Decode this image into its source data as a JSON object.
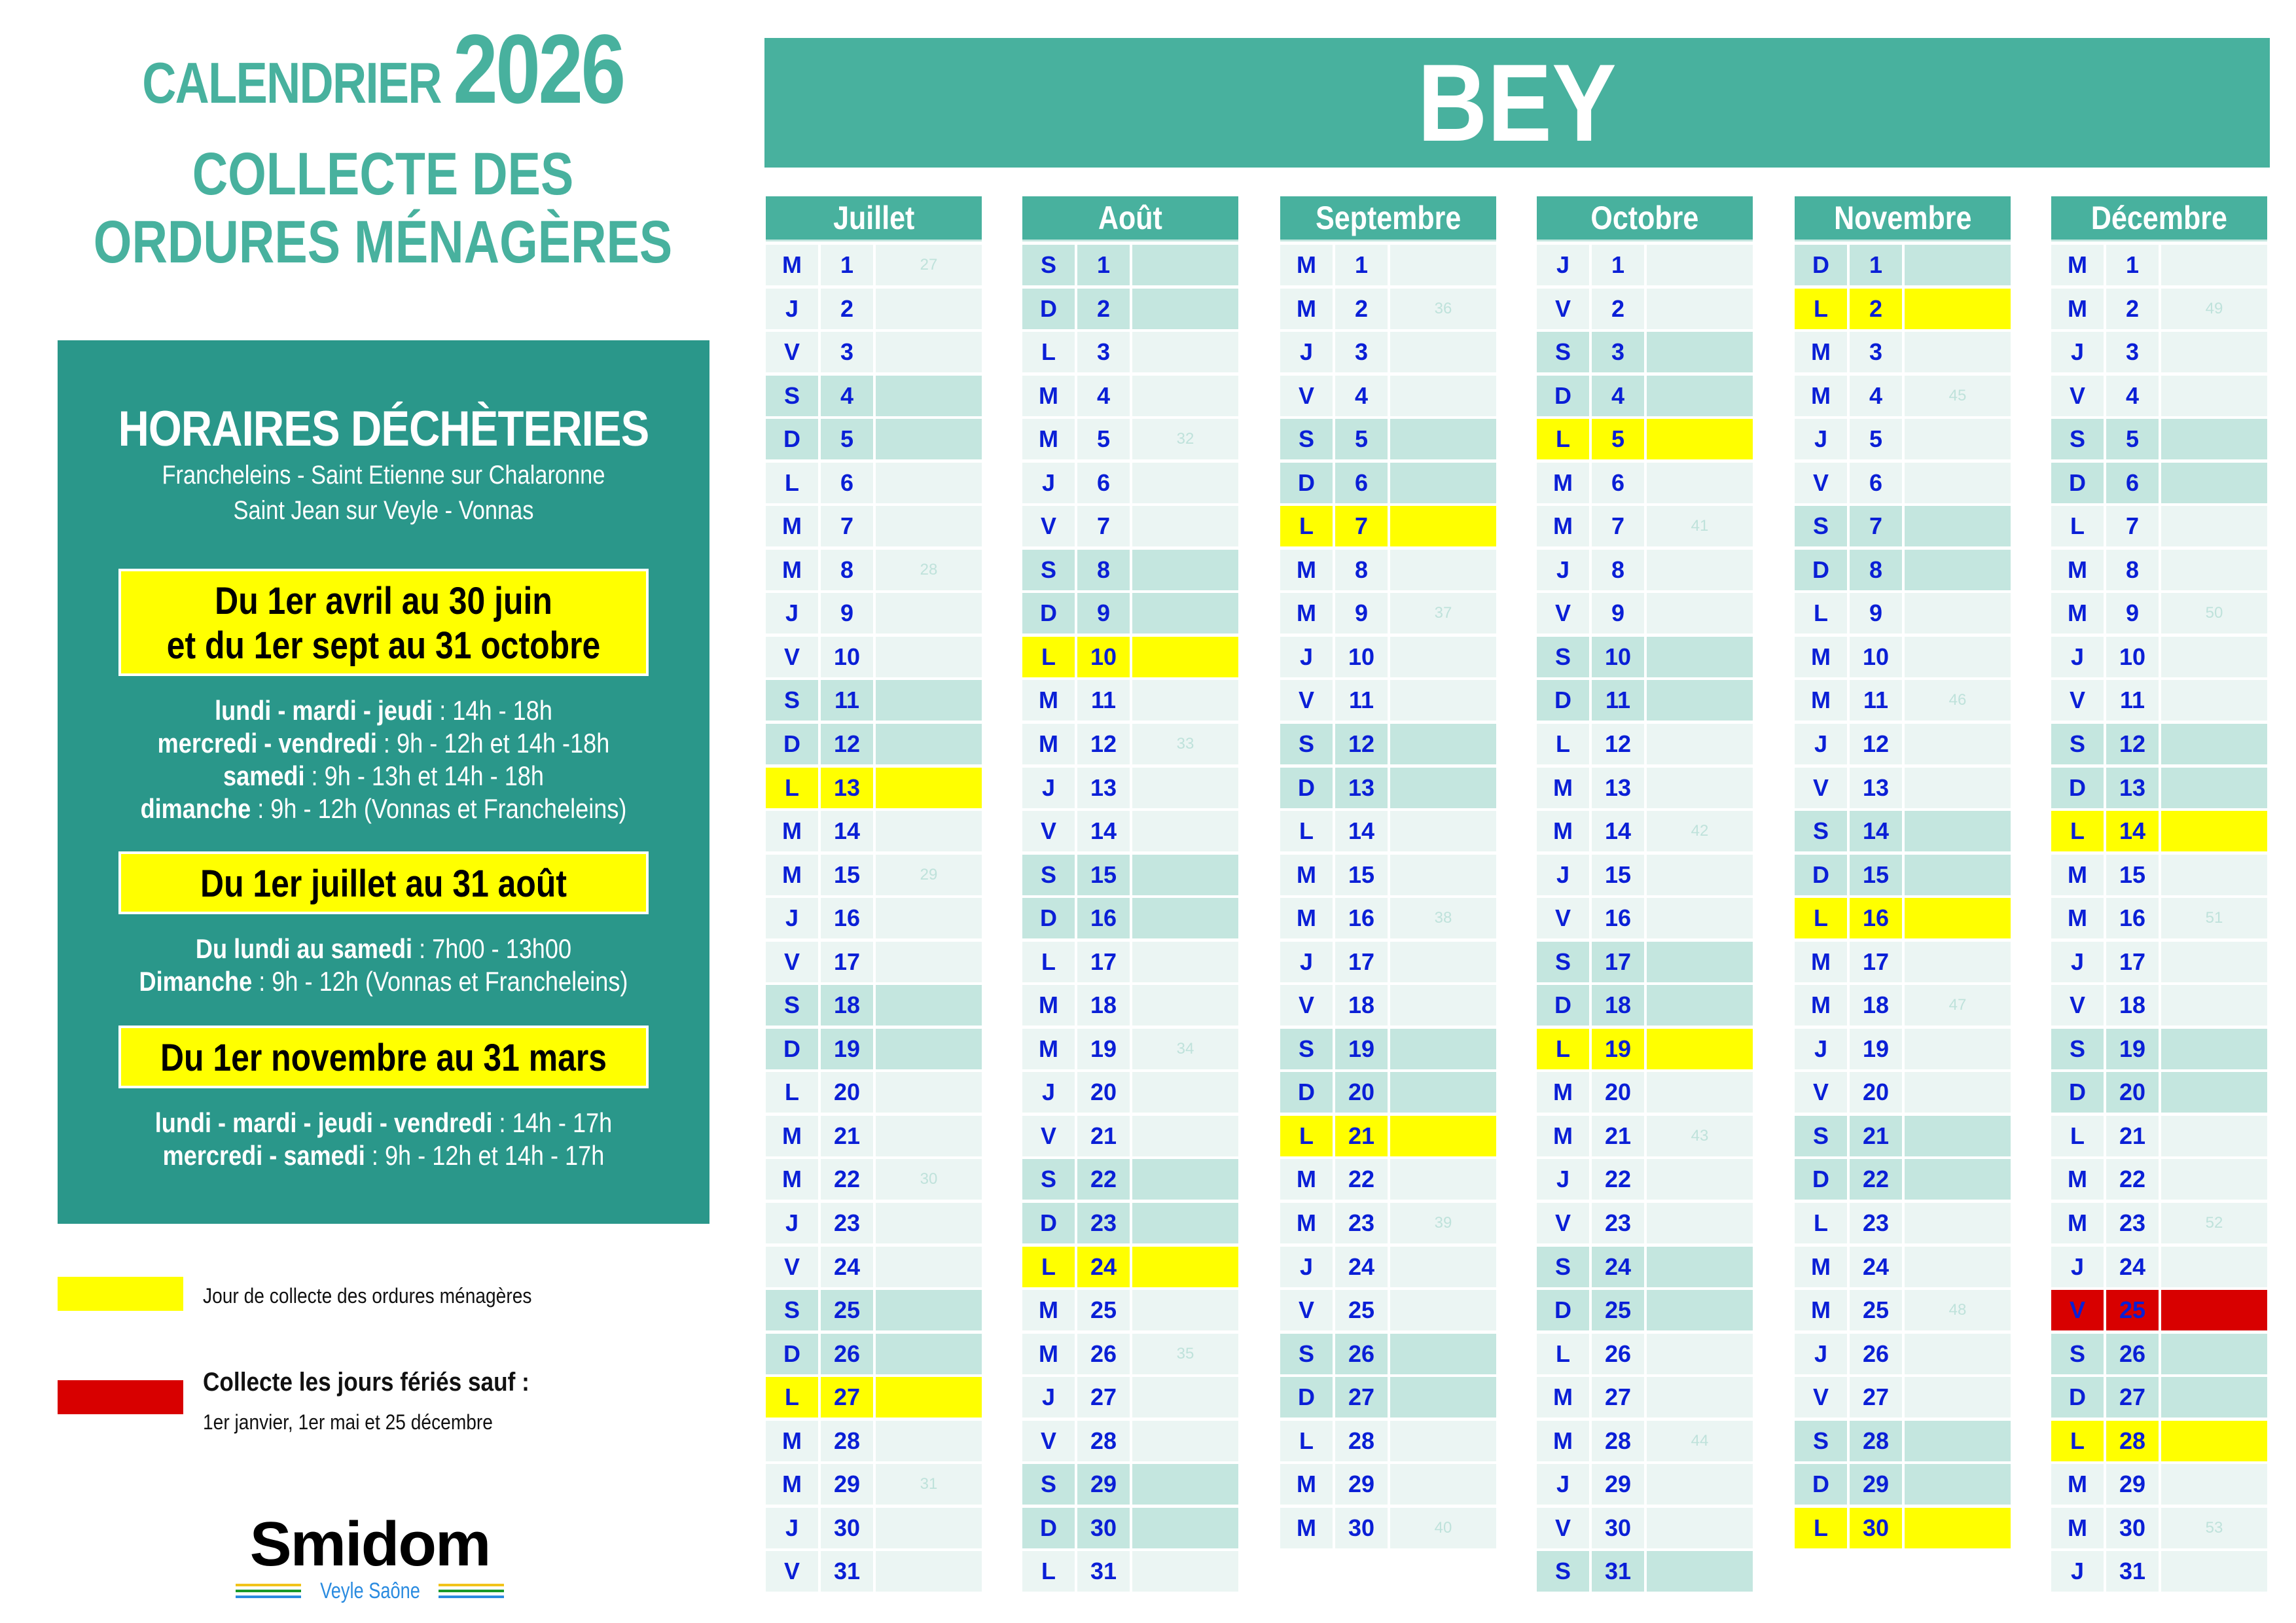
{
  "title": {
    "calendrier": "CALENDRIER",
    "year": "2026",
    "line2": "COLLECTE DES",
    "line3": "ORDURES MÉNAGÈRES"
  },
  "commune": "BEY",
  "decheteries": {
    "title": "HORAIRES DÉCHÈTERIES",
    "sites_line1": "Francheleins - Saint Etienne sur Chalaronne",
    "sites_line2": "Saint Jean sur Veyle - Vonnas",
    "periods": [
      {
        "label_line1": "Du 1er avril au 30 juin",
        "label_line2": "et du 1er sept au 31 octobre",
        "hours": [
          {
            "days": "lundi - mardi - jeudi",
            "time": " : 14h - 18h"
          },
          {
            "days": "mercredi - vendredi",
            "time": " : 9h - 12h et 14h -18h"
          },
          {
            "days": "samedi",
            "time": " : 9h - 13h et 14h - 18h"
          },
          {
            "days": "dimanche",
            "time": " : 9h - 12h (Vonnas et Francheleins)"
          }
        ]
      },
      {
        "label_line1": "Du 1er juillet au 31 août",
        "hours": [
          {
            "days": "Du lundi au samedi",
            "time": " : 7h00 - 13h00"
          },
          {
            "days": "Dimanche",
            "time": " : 9h - 12h (Vonnas et Francheleins)"
          }
        ]
      },
      {
        "label_line1": "Du 1er novembre au 31 mars",
        "hours": [
          {
            "days": "lundi - mardi - jeudi - vendredi",
            "time": " : 14h - 17h"
          },
          {
            "days": "mercredi - samedi",
            "time": " : 9h - 12h et 14h - 17h"
          }
        ]
      }
    ]
  },
  "legend": {
    "collection": {
      "color": "#ffff00",
      "label": "Jour de collecte des ordures ménagères"
    },
    "holiday": {
      "color": "#d80000",
      "label": "Collecte les jours fériés sauf :",
      "detail": "1er janvier, 1er mai et 25 décembre"
    }
  },
  "logo": {
    "name": "Smidom",
    "subtitle": "Veyle Saône"
  },
  "colors": {
    "teal": "#48b19e",
    "dark_teal": "#2a978a",
    "cell_light": "#ebf5f3",
    "cell_weekend": "#c4e6df",
    "collection_yellow": "#ffff00",
    "holiday_red": "#d80000",
    "text_blue": "#0a1fd6"
  },
  "months": [
    {
      "name": "Juillet",
      "first_day": "M",
      "days_count": 31,
      "days": [
        "M",
        "J",
        "V",
        "S",
        "D",
        "L",
        "M",
        "M",
        "J",
        "V",
        "S",
        "D",
        "L",
        "M",
        "M",
        "J",
        "V",
        "S",
        "D",
        "L",
        "M",
        "M",
        "J",
        "V",
        "S",
        "D",
        "L",
        "M",
        "M",
        "J",
        "V"
      ],
      "weeks": {
        "1": "27",
        "8": "28",
        "15": "29",
        "22": "30",
        "29": "31"
      },
      "collection_days": [
        13,
        27
      ],
      "holidays": []
    },
    {
      "name": "Août",
      "days_count": 31,
      "days": [
        "S",
        "D",
        "L",
        "M",
        "M",
        "J",
        "V",
        "S",
        "D",
        "L",
        "M",
        "M",
        "J",
        "V",
        "S",
        "D",
        "L",
        "M",
        "M",
        "J",
        "V",
        "S",
        "D",
        "L",
        "M",
        "M",
        "J",
        "V",
        "S",
        "D",
        "L"
      ],
      "weeks": {
        "5": "32",
        "12": "33",
        "19": "34",
        "26": "35"
      },
      "collection_days": [
        10,
        24
      ],
      "holidays": []
    },
    {
      "name": "Septembre",
      "days_count": 30,
      "days": [
        "M",
        "M",
        "J",
        "V",
        "S",
        "D",
        "L",
        "M",
        "M",
        "J",
        "V",
        "S",
        "D",
        "L",
        "M",
        "M",
        "J",
        "V",
        "S",
        "D",
        "L",
        "M",
        "M",
        "J",
        "V",
        "S",
        "D",
        "L",
        "M",
        "M"
      ],
      "weeks": {
        "2": "36",
        "9": "37",
        "16": "38",
        "23": "39",
        "30": "40"
      },
      "collection_days": [
        7,
        21
      ],
      "holidays": []
    },
    {
      "name": "Octobre",
      "days_count": 31,
      "days": [
        "J",
        "V",
        "S",
        "D",
        "L",
        "M",
        "M",
        "J",
        "V",
        "S",
        "D",
        "L",
        "M",
        "M",
        "J",
        "V",
        "S",
        "D",
        "L",
        "M",
        "M",
        "J",
        "V",
        "S",
        "D",
        "L",
        "M",
        "M",
        "J",
        "V",
        "S"
      ],
      "weeks": {
        "7": "41",
        "14": "42",
        "21": "43",
        "28": "44"
      },
      "collection_days": [
        5,
        19
      ],
      "holidays": []
    },
    {
      "name": "Novembre",
      "days_count": 30,
      "days": [
        "D",
        "L",
        "M",
        "M",
        "J",
        "V",
        "S",
        "D",
        "L",
        "M",
        "M",
        "J",
        "V",
        "S",
        "D",
        "L",
        "M",
        "M",
        "J",
        "V",
        "S",
        "D",
        "L",
        "M",
        "M",
        "J",
        "V",
        "S",
        "D",
        "L"
      ],
      "weeks": {
        "4": "45",
        "11": "46",
        "18": "47",
        "25": "48"
      },
      "collection_days": [
        2,
        16,
        30
      ],
      "holidays": []
    },
    {
      "name": "Décembre",
      "days_count": 31,
      "days": [
        "M",
        "M",
        "J",
        "V",
        "S",
        "D",
        "L",
        "M",
        "M",
        "J",
        "V",
        "S",
        "D",
        "L",
        "M",
        "M",
        "J",
        "V",
        "S",
        "D",
        "L",
        "M",
        "M",
        "J",
        "V",
        "S",
        "D",
        "L",
        "M",
        "M",
        "J"
      ],
      "weeks": {
        "2": "49",
        "9": "50",
        "16": "51",
        "23": "52",
        "30": "53"
      },
      "collection_days": [
        14,
        28
      ],
      "holidays": [
        25
      ]
    }
  ]
}
